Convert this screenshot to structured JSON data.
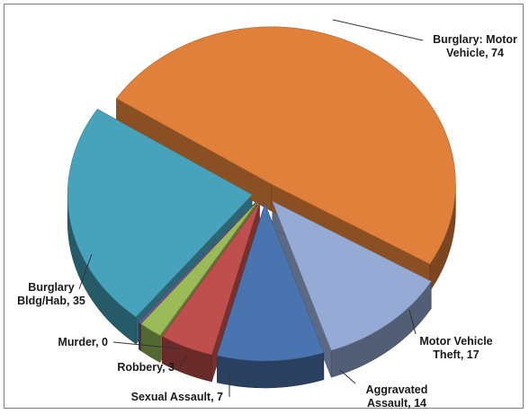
{
  "chart_data": {
    "type": "pie",
    "style": "3d-exploded",
    "title": "",
    "slices": [
      {
        "name": "Burglary:  Motor Vehicle",
        "value": 74,
        "color": "#e0803a",
        "label_lines": [
          "Burglary:  Motor",
          "Vehicle, 74"
        ]
      },
      {
        "name": "Motor Vehicle Theft",
        "value": 17,
        "color": "#95aad4",
        "label_lines": [
          "Motor Vehicle",
          "Theft, 17"
        ]
      },
      {
        "name": "Aggravated Assault",
        "value": 14,
        "color": "#4a74b0",
        "label_lines": [
          "Aggravated",
          "Assault, 14"
        ]
      },
      {
        "name": "Sexual Assault",
        "value": 7,
        "color": "#bf4f4c",
        "label_lines": [
          "Sexual Assault, 7"
        ]
      },
      {
        "name": "Robbery",
        "value": 3,
        "color": "#9bbb59",
        "label_lines": [
          "Robbery, 3"
        ]
      },
      {
        "name": "Murder",
        "value": 0,
        "color": "#7a5aa0",
        "label_lines": [
          "Murder, 0"
        ]
      },
      {
        "name": "Burglary Bldg/Hab",
        "value": 35,
        "color": "#47a3bb",
        "label_lines": [
          "Burglary",
          "Bldg/Hab, 35"
        ]
      }
    ],
    "legend": "none",
    "data_labels": "outside-with-leader-lines"
  }
}
